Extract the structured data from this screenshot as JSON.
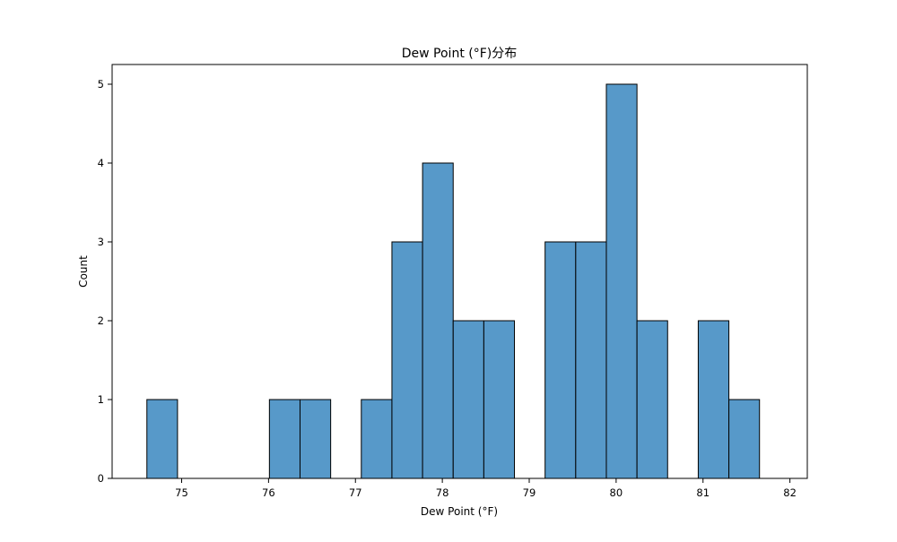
{
  "chart_data": {
    "type": "bar",
    "title": "Dew Point (°F)分布",
    "xlabel": "Dew Point (°F)",
    "ylabel": "Count",
    "bin_width": 0.3525,
    "bins": [
      {
        "start": 74.6,
        "count": 1
      },
      {
        "start": 74.9525,
        "count": 0
      },
      {
        "start": 75.305,
        "count": 0
      },
      {
        "start": 75.6575,
        "count": 0
      },
      {
        "start": 76.01,
        "count": 1
      },
      {
        "start": 76.3625,
        "count": 1
      },
      {
        "start": 76.715,
        "count": 0
      },
      {
        "start": 77.0675,
        "count": 1
      },
      {
        "start": 77.42,
        "count": 3
      },
      {
        "start": 77.7725,
        "count": 4
      },
      {
        "start": 78.125,
        "count": 2
      },
      {
        "start": 78.4775,
        "count": 2
      },
      {
        "start": 78.83,
        "count": 0
      },
      {
        "start": 79.1825,
        "count": 3
      },
      {
        "start": 79.535,
        "count": 3
      },
      {
        "start": 79.8875,
        "count": 5
      },
      {
        "start": 80.24,
        "count": 2
      },
      {
        "start": 80.5925,
        "count": 0
      },
      {
        "start": 80.945,
        "count": 2
      },
      {
        "start": 81.2975,
        "count": 1
      }
    ],
    "xlim": [
      74.2,
      82.2
    ],
    "ylim": [
      0,
      5.25
    ],
    "xticks": [
      "75",
      "76",
      "77",
      "78",
      "79",
      "80",
      "81",
      "82"
    ],
    "yticks": [
      "0",
      "1",
      "2",
      "3",
      "4",
      "5"
    ],
    "bar_color": "#5799c9",
    "edge_color": "#000000",
    "grid": false
  }
}
